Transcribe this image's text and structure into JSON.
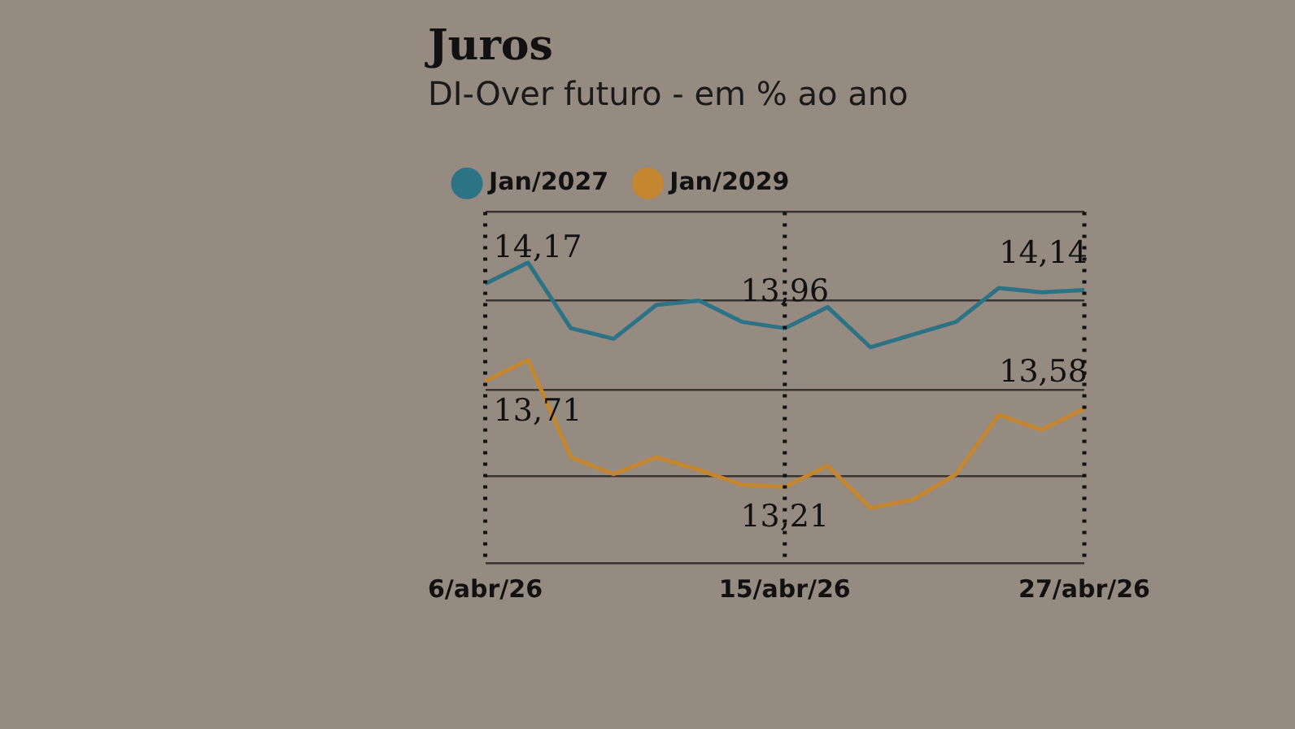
{
  "chart_data": {
    "type": "line",
    "title": "Juros",
    "subtitle": "DI-Over futuro - em % ao ano",
    "categories": [
      "6/abr/26",
      null,
      null,
      null,
      null,
      null,
      null,
      "15/abr/26",
      null,
      null,
      null,
      null,
      null,
      null,
      "27/abr/26"
    ],
    "series": [
      {
        "name": "Jan/2027",
        "color": "#2b7385",
        "values": [
          14.17,
          14.27,
          13.96,
          13.91,
          14.07,
          14.09,
          13.99,
          13.96,
          14.06,
          13.87,
          13.93,
          13.99,
          14.15,
          14.13,
          14.14
        ],
        "value_labels": [
          "14,17",
          null,
          null,
          null,
          null,
          null,
          null,
          "13,96",
          null,
          null,
          null,
          null,
          null,
          null,
          "14,14"
        ]
      },
      {
        "name": "Jan/2029",
        "color": "#c4862f",
        "values": [
          13.71,
          13.81,
          13.35,
          13.27,
          13.35,
          13.29,
          13.22,
          13.21,
          13.31,
          13.11,
          13.15,
          13.27,
          13.55,
          13.48,
          13.58
        ],
        "value_labels": [
          "13,71",
          null,
          null,
          null,
          null,
          null,
          null,
          "13,21",
          null,
          null,
          null,
          null,
          null,
          null,
          "13,58"
        ]
      }
    ],
    "ylim": [
      12.85,
      14.51
    ],
    "yticks": [
      {
        "value": 12.85,
        "label": null
      },
      {
        "value": 13.26,
        "label": null
      },
      {
        "value": 13.67,
        "label": null
      },
      {
        "value": 14.09,
        "label": null
      },
      {
        "value": 14.51,
        "label": null
      }
    ],
    "tick_labels": "x",
    "grid": "y",
    "legend": "top left",
    "marker": "none",
    "line_style": "solid",
    "ref_lines": [
      {
        "axis": "x",
        "value": "6/abr/26",
        "line_style": "dotted",
        "color": "#111111"
      },
      {
        "axis": "x",
        "value": "15/abr/26",
        "line_style": "dotted",
        "color": "#111111"
      },
      {
        "axis": "x",
        "value": "27/abr/26",
        "line_style": "dotted",
        "color": "#111111"
      }
    ]
  }
}
